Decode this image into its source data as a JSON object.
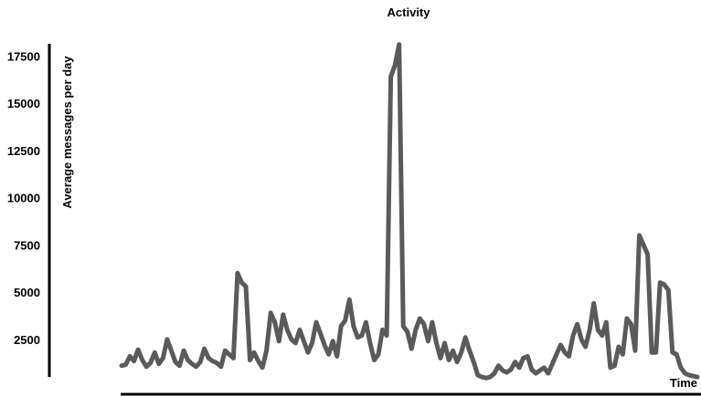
{
  "chart_data": {
    "type": "line",
    "title": "Activity",
    "xlabel": "Time",
    "ylabel": "Average messages per day",
    "ylim": [
      0,
      17500
    ],
    "yticks": [
      2500,
      5000,
      7500,
      10000,
      12500,
      15000,
      17500
    ],
    "grid": false,
    "legend": "none",
    "series_color": "#5a5a5a",
    "series": [
      {
        "values": [
          1100,
          1150,
          1600,
          1350,
          1950,
          1400,
          1050,
          1250,
          1800,
          1200,
          1500,
          2500,
          1900,
          1300,
          1100,
          1900,
          1400,
          1200,
          1050,
          1300,
          2000,
          1500,
          1350,
          1250,
          1050,
          1900,
          1700,
          1500,
          6000,
          5500,
          5300,
          1400,
          1800,
          1350,
          1000,
          1900,
          3900,
          3400,
          2400,
          3800,
          3000,
          2500,
          2300,
          3000,
          2400,
          1800,
          2300,
          3400,
          2800,
          2200,
          1700,
          2400,
          1600,
          3200,
          3500,
          4600,
          3200,
          2600,
          2700,
          3400,
          2300,
          1400,
          1700,
          3000,
          2700,
          16400,
          17000,
          18100,
          3200,
          2900,
          2000,
          3000,
          3600,
          3300,
          2400,
          3400,
          2300,
          1500,
          2300,
          1400,
          1900,
          1300,
          1800,
          2600,
          1900,
          1300,
          600,
          500,
          450,
          500,
          700,
          1100,
          850,
          750,
          900,
          1300,
          1000,
          1500,
          1600,
          900,
          700,
          850,
          1000,
          700,
          1200,
          1700,
          2200,
          1800,
          1600,
          2700,
          3300,
          2500,
          2100,
          3000,
          4400,
          3000,
          2700,
          3400,
          1000,
          1100,
          2100,
          1700,
          3600,
          3300,
          1900,
          8000,
          7500,
          7000,
          1800,
          1800,
          5500,
          5400,
          5100,
          1800,
          1700,
          1000,
          700,
          600,
          550,
          500
        ]
      }
    ]
  }
}
